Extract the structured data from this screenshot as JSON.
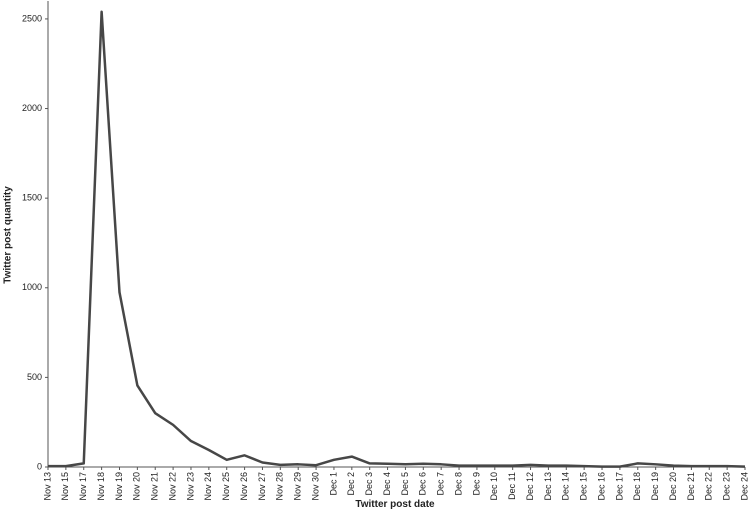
{
  "chart_data": {
    "type": "line",
    "x_label": "Twitter post date",
    "y_label": "Twitter post quantity",
    "categories": [
      "Nov 13",
      "Nov 15",
      "Nov 17",
      "Nov 18",
      "Nov 19",
      "Nov 20",
      "Nov 21",
      "Nov 22",
      "Nov 23",
      "Nov 24",
      "Nov 25",
      "Nov 26",
      "Nov 27",
      "Nov 28",
      "Nov 29",
      "Nov 30",
      "Dec 1",
      "Dec 2",
      "Dec 3",
      "Dec 4",
      "Dec 5",
      "Dec 6",
      "Dec 7",
      "Dec 8",
      "Dec 9",
      "Dec 10",
      "Dec 11",
      "Dec 12",
      "Dec 13",
      "Dec 14",
      "Dec 15",
      "Dec 16",
      "Dec 17",
      "Dec 18",
      "Dec 19",
      "Dec 20",
      "Dec 21",
      "Dec 22",
      "Dec 23",
      "Dec 24"
    ],
    "values": [
      5,
      5,
      20,
      2540,
      975,
      455,
      300,
      235,
      145,
      95,
      40,
      65,
      25,
      12,
      15,
      10,
      40,
      58,
      20,
      18,
      15,
      18,
      15,
      8,
      8,
      8,
      8,
      12,
      8,
      8,
      5,
      2,
      2,
      20,
      15,
      8,
      5,
      5,
      5,
      2
    ],
    "color": "#474747",
    "ylim": [
      0,
      2600
    ],
    "yticks": [
      0,
      500,
      1000,
      1500,
      2000,
      2500
    ]
  }
}
